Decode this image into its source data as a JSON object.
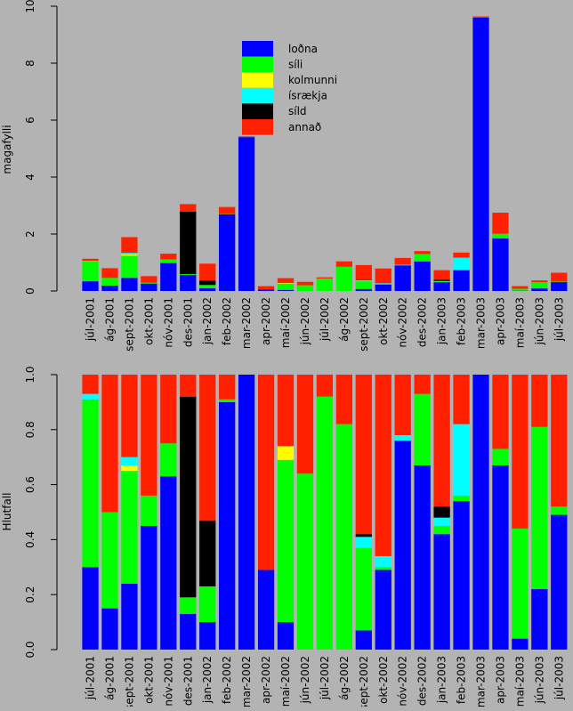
{
  "colors": {
    "background": "#b3b3b3",
    "loona": "#0000ff",
    "sili": "#00ff00",
    "kolmunni": "#ffff00",
    "israekja": "#00ffff",
    "sild": "#000000",
    "annad": "#ff2000"
  },
  "chart_data": [
    {
      "type": "bar",
      "stacked": true,
      "ylabel": "magafylli",
      "ylim": [
        0,
        10
      ],
      "yticks": [
        "0",
        "2",
        "4",
        "6",
        "8",
        "10"
      ],
      "legend": {
        "placement": "top-center",
        "entries": [
          {
            "name": "loðna",
            "color": "#0000ff"
          },
          {
            "name": "síli",
            "color": "#00ff00"
          },
          {
            "name": "kolmunni",
            "color": "#ffff00"
          },
          {
            "name": "ísrækja",
            "color": "#00ffff"
          },
          {
            "name": "síld",
            "color": "#000000"
          },
          {
            "name": "annað",
            "color": "#ff2000"
          }
        ]
      },
      "categories": [
        "júl-2001",
        "ág-2001",
        "sept-2001",
        "okt-2001",
        "nóv-2001",
        "des-2001",
        "jan-2002",
        "feb-2002",
        "mar-2002",
        "apr-2002",
        "maí-2002",
        "jún-2002",
        "júl-2002",
        "ág-2002",
        "sept-2002",
        "okt-2002",
        "nóv-2002",
        "des-2002",
        "jan-2003",
        "feb-2003",
        "mar-2003",
        "apr-2003",
        "maí-2003",
        "jún-2003",
        "júl-2003"
      ],
      "series": [
        {
          "name": "loðna",
          "color": "#0000ff",
          "values": [
            0.34,
            0.19,
            0.46,
            0.26,
            0.98,
            0.56,
            0.1,
            2.69,
            5.4,
            0.05,
            0.04,
            0,
            0,
            0,
            0.07,
            0.23,
            0.9,
            1.04,
            0.31,
            0.73,
            9.6,
            1.85,
            0.01,
            0.09,
            0.31
          ]
        },
        {
          "name": "síli",
          "color": "#00ff00",
          "values": [
            0.7,
            0.27,
            0.78,
            0.03,
            0.13,
            0.03,
            0.11,
            0.01,
            0,
            0,
            0.22,
            0.2,
            0.44,
            0.85,
            0.27,
            0.01,
            0,
            0.26,
            0.02,
            0.02,
            0,
            0.16,
            0.07,
            0.22,
            0.02
          ]
        },
        {
          "name": "kolmunni",
          "color": "#ffff00",
          "values": [
            0,
            0,
            0.04,
            0,
            0,
            0,
            0,
            0,
            0,
            0,
            0.02,
            0,
            0,
            0,
            0,
            0,
            0,
            0,
            0,
            0,
            0,
            0,
            0,
            0,
            0
          ]
        },
        {
          "name": "ísrækja",
          "color": "#00ffff",
          "values": [
            0.02,
            0,
            0.06,
            0,
            0,
            0,
            0,
            0,
            0,
            0,
            0,
            0,
            0,
            0,
            0.04,
            0.03,
            0.02,
            0,
            0.02,
            0.42,
            0,
            0,
            0,
            0,
            0
          ]
        },
        {
          "name": "síld",
          "color": "#000000",
          "values": [
            0,
            0,
            0,
            0,
            0,
            2.2,
            0.15,
            0,
            0,
            0,
            0,
            0,
            0,
            0,
            0.01,
            0,
            0,
            0,
            0.04,
            0,
            0,
            0,
            0,
            0,
            0
          ]
        },
        {
          "name": "annað",
          "color": "#ff2000",
          "values": [
            0.07,
            0.34,
            0.55,
            0.23,
            0.2,
            0.26,
            0.6,
            0.25,
            0.03,
            0.12,
            0.17,
            0.12,
            0.04,
            0.19,
            0.52,
            0.52,
            0.24,
            0.1,
            0.34,
            0.18,
            0.04,
            0.74,
            0.09,
            0.06,
            0.31
          ]
        }
      ]
    },
    {
      "type": "bar",
      "stacked": true,
      "ylabel": "Hlutfall",
      "ylim": [
        0,
        1
      ],
      "yticks": [
        "0.0",
        "0.2",
        "0.4",
        "0.6",
        "0.8",
        "1.0"
      ],
      "categories": [
        "júl-2001",
        "ág-2001",
        "sept-2001",
        "okt-2001",
        "nóv-2001",
        "des-2001",
        "jan-2002",
        "feb-2002",
        "mar-2002",
        "apr-2002",
        "maí-2002",
        "jún-2002",
        "júl-2002",
        "ág-2002",
        "sept-2002",
        "okt-2002",
        "nóv-2002",
        "des-2002",
        "jan-2003",
        "feb-2003",
        "mar-2003",
        "apr-2003",
        "maí-2003",
        "jún-2003",
        "júl-2003"
      ],
      "series": [
        {
          "name": "loðna",
          "color": "#0000ff",
          "values": [
            0.3,
            0.15,
            0.24,
            0.45,
            0.63,
            0.13,
            0.1,
            0.9,
            1.0,
            0.29,
            0.1,
            0,
            0,
            0,
            0.07,
            0.29,
            0.76,
            0.67,
            0.42,
            0.54,
            1.0,
            0.67,
            0.04,
            0.22,
            0.49
          ]
        },
        {
          "name": "síli",
          "color": "#00ff00",
          "values": [
            0.61,
            0.35,
            0.41,
            0.11,
            0.12,
            0.06,
            0.13,
            0.01,
            0,
            0,
            0.59,
            0.64,
            0.92,
            0.82,
            0.3,
            0.01,
            0,
            0.26,
            0.03,
            0.02,
            0,
            0.06,
            0.4,
            0.59,
            0.03
          ]
        },
        {
          "name": "kolmunni",
          "color": "#ffff00",
          "values": [
            0,
            0,
            0.02,
            0,
            0,
            0,
            0,
            0,
            0,
            0,
            0.05,
            0,
            0,
            0,
            0,
            0,
            0,
            0,
            0,
            0,
            0,
            0,
            0,
            0,
            0
          ]
        },
        {
          "name": "ísrækja",
          "color": "#00ffff",
          "values": [
            0.02,
            0,
            0.03,
            0,
            0,
            0,
            0,
            0,
            0,
            0,
            0,
            0,
            0,
            0,
            0.04,
            0.04,
            0.02,
            0,
            0.03,
            0.26,
            0,
            0,
            0,
            0,
            0
          ]
        },
        {
          "name": "síld",
          "color": "#000000",
          "values": [
            0,
            0,
            0,
            0,
            0,
            0.73,
            0.24,
            0,
            0,
            0,
            0,
            0,
            0,
            0,
            0.01,
            0,
            0,
            0,
            0.04,
            0,
            0,
            0,
            0,
            0,
            0
          ]
        },
        {
          "name": "annað",
          "color": "#ff2000",
          "values": [
            0.07,
            0.5,
            0.3,
            0.44,
            0.25,
            0.08,
            0.53,
            0.09,
            0,
            0.71,
            0.26,
            0.36,
            0.08,
            0.18,
            0.58,
            0.66,
            0.22,
            0.07,
            0.48,
            0.18,
            0,
            0.27,
            0.56,
            0.19,
            0.48
          ]
        }
      ]
    }
  ]
}
